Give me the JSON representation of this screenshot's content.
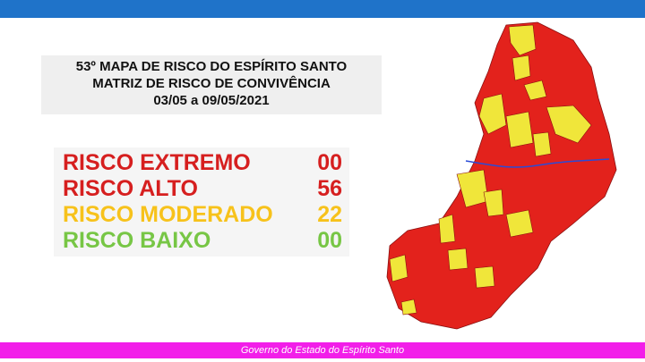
{
  "header": {
    "title_lines": [
      "53º MAPA DE RISCO DO ESPÍRITO SANTO",
      "MATRIZ DE RISCO DE CONVIVÊNCIA",
      "03/05 a 09/05/2021"
    ]
  },
  "risk_levels": [
    {
      "label": "RISCO EXTREMO",
      "count": "00"
    },
    {
      "label": "RISCO ALTO",
      "count": "56"
    },
    {
      "label": "RISCO MODERADO",
      "count": "22"
    },
    {
      "label": "RISCO BAIXO",
      "count": "00"
    }
  ],
  "footer": {
    "text": "Governo do Estado do Espírito Santo"
  }
}
